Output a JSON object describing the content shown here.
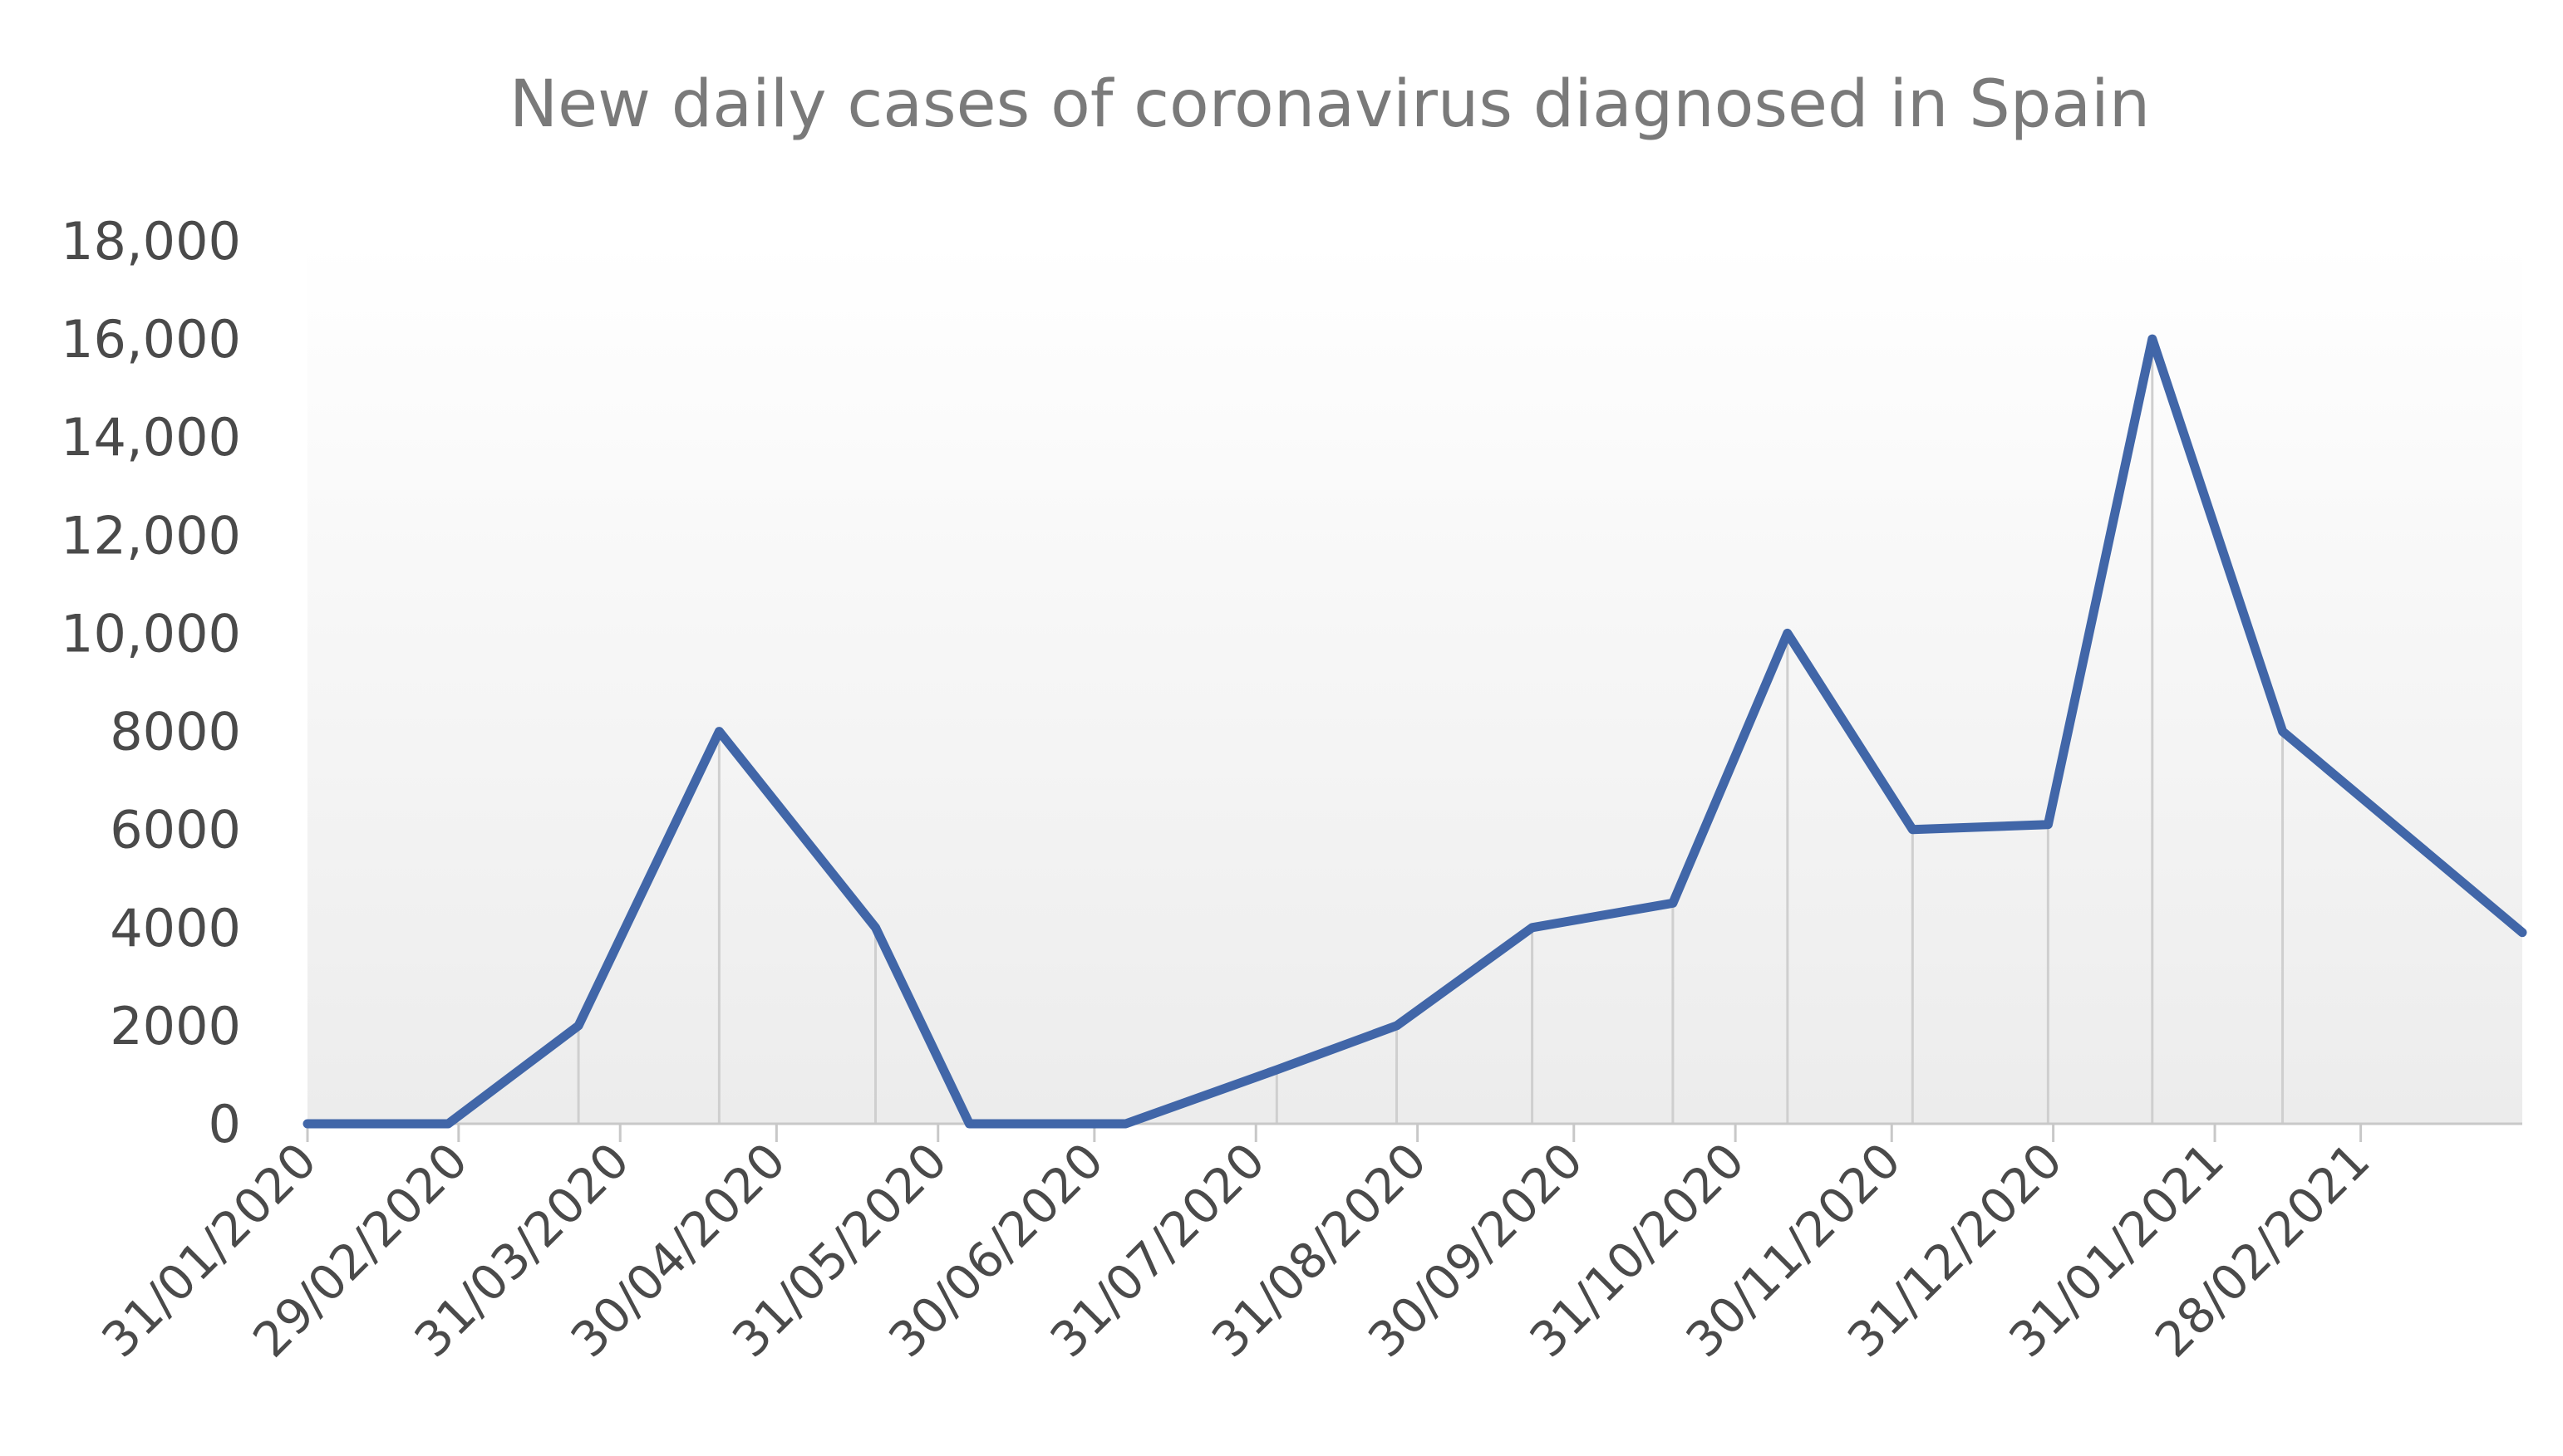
{
  "chart_data": {
    "type": "line",
    "title": "New daily cases of coronavirus  diagnosed in Spain",
    "xlabel": "",
    "ylabel": "",
    "ylim": [
      0,
      18000
    ],
    "y_ticks": [
      {
        "value": 0,
        "label": "0"
      },
      {
        "value": 2000,
        "label": "2000"
      },
      {
        "value": 4000,
        "label": "4000"
      },
      {
        "value": 6000,
        "label": "6000"
      },
      {
        "value": 8000,
        "label": "8000"
      },
      {
        "value": 10000,
        "label": "10,000"
      },
      {
        "value": 12000,
        "label": "12,000"
      },
      {
        "value": 14000,
        "label": "14,000"
      },
      {
        "value": 16000,
        "label": "16,000"
      },
      {
        "value": 18000,
        "label": "18,000"
      }
    ],
    "x_range": [
      "2020-01-31",
      "2021-03-31"
    ],
    "x_ticks": [
      {
        "date": "2020-01-31",
        "label": "31/01/2020"
      },
      {
        "date": "2020-02-29",
        "label": "29/02/2020"
      },
      {
        "date": "2020-03-31",
        "label": "31/03/2020"
      },
      {
        "date": "2020-04-30",
        "label": "30/04/2020"
      },
      {
        "date": "2020-05-31",
        "label": "31/05/2020"
      },
      {
        "date": "2020-06-30",
        "label": "30/06/2020"
      },
      {
        "date": "2020-07-31",
        "label": "31/07/2020"
      },
      {
        "date": "2020-08-31",
        "label": "31/08/2020"
      },
      {
        "date": "2020-09-30",
        "label": "30/09/2020"
      },
      {
        "date": "2020-10-31",
        "label": "31/10/2020"
      },
      {
        "date": "2020-11-30",
        "label": "30/11/2020"
      },
      {
        "date": "2020-12-31",
        "label": "31/12/2020"
      },
      {
        "date": "2021-01-31",
        "label": "31/01/2021"
      },
      {
        "date": "2021-02-28",
        "label": "28/02/2021"
      }
    ],
    "series": [
      {
        "color": "#4166a8",
        "points": [
          {
            "x": "2020-01-31",
            "y": 0
          },
          {
            "x": "2020-02-27",
            "y": 0
          },
          {
            "x": "2020-03-23",
            "y": 2000
          },
          {
            "x": "2020-04-19",
            "y": 8000
          },
          {
            "x": "2020-05-19",
            "y": 4000
          },
          {
            "x": "2020-06-06",
            "y": 0
          },
          {
            "x": "2020-07-06",
            "y": 0
          },
          {
            "x": "2020-08-04",
            "y": 1100
          },
          {
            "x": "2020-08-27",
            "y": 2000
          },
          {
            "x": "2020-09-22",
            "y": 4000
          },
          {
            "x": "2020-10-19",
            "y": 4500
          },
          {
            "x": "2020-11-10",
            "y": 10000
          },
          {
            "x": "2020-12-04",
            "y": 6000
          },
          {
            "x": "2020-12-30",
            "y": 6100
          },
          {
            "x": "2021-01-19",
            "y": 16000
          },
          {
            "x": "2021-02-13",
            "y": 8000
          },
          {
            "x": "2021-03-31",
            "y": 3900
          }
        ]
      }
    ],
    "grid": "vertical drop lines at each data point",
    "legend": "none",
    "colors": {
      "line": "#4166a8",
      "plot_bg_top": "#ffffff",
      "plot_bg_bottom": "#ececec",
      "drop_line": "#cfcfcf",
      "axis": "#c8c8c8",
      "title": "#7a7a7a",
      "tick_label": "#4a4a4a"
    }
  }
}
